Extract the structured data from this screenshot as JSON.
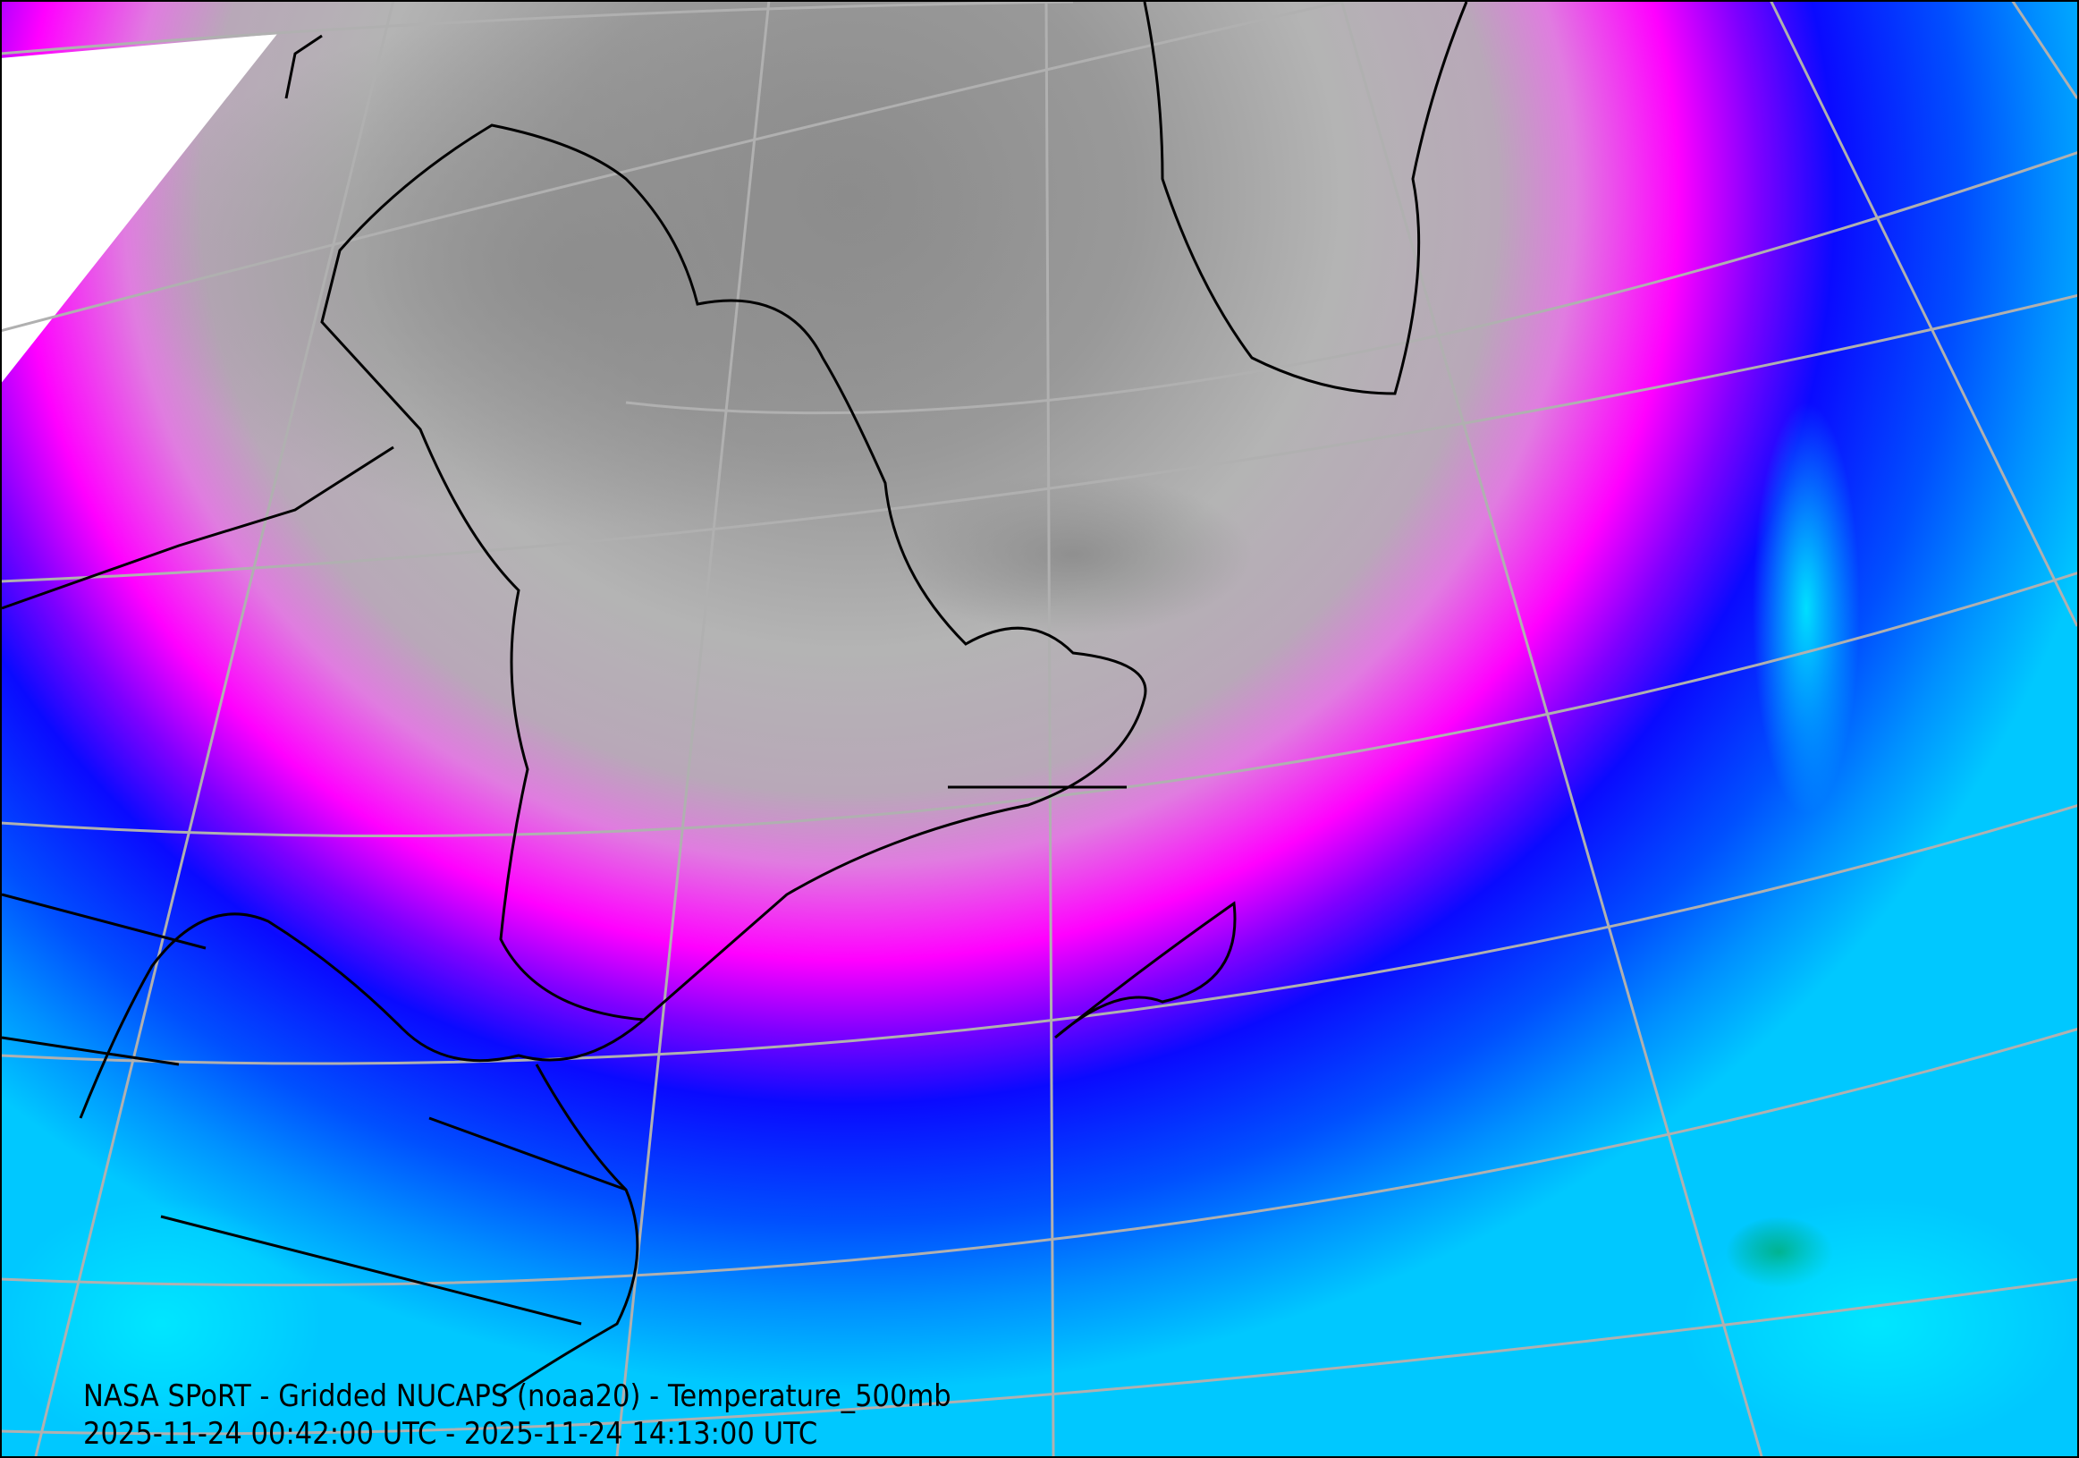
{
  "map": {
    "title_line": "NASA SPoRT - Gridded NUCAPS (noaa20) - Temperature_500mb",
    "time_range_line": "2025-11-24 00:42:00 UTC - 2025-11-24 14:13:00 UTC",
    "colors": {
      "coldest": "#8c8c8c",
      "cold": "#b4b4b4",
      "pink": "#e07ce0",
      "magenta": "#ff00ff",
      "purple": "#8000ff",
      "blue": "#0a0aff",
      "light_blue": "#0090ff",
      "cyan": "#00e8ff",
      "green": "#00a060",
      "no_data": "#ffffff",
      "graticule": "#b0b0b0",
      "coastline": "#000000"
    }
  }
}
